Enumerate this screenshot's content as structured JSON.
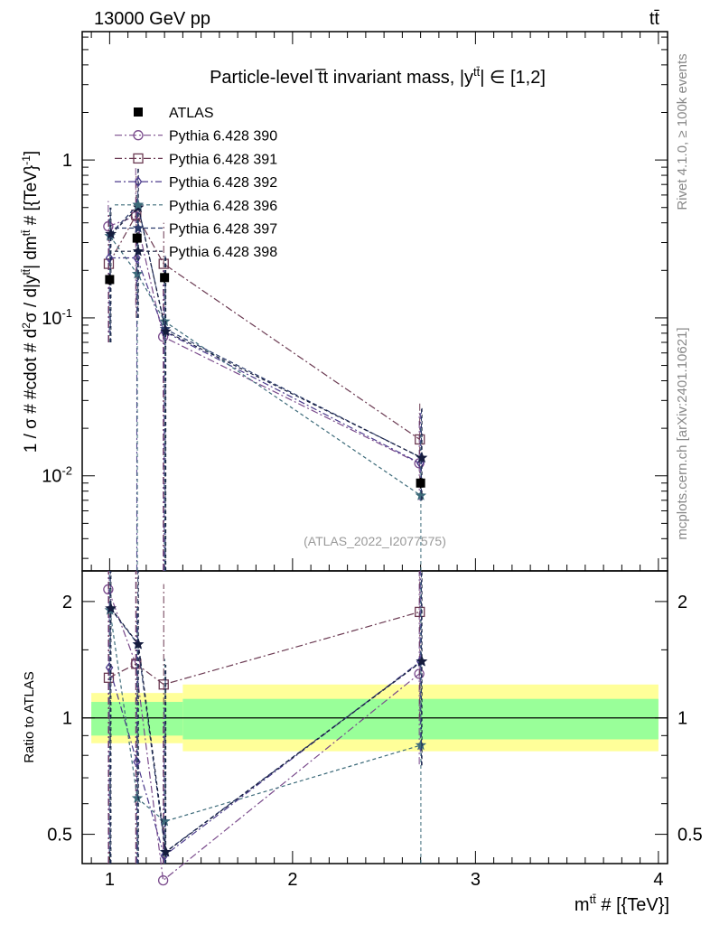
{
  "header": {
    "left": "13000 GeV pp",
    "right": "tt̄"
  },
  "side_labels": {
    "rivet": "Rivet 4.1.0, ≥ 100k events",
    "mcplots": "mcplots.cern.ch [arXiv:2401.10621]"
  },
  "chart_data": {
    "type": "line",
    "title": "Particle-level tt̄ invariant mass, |y^{tt̄}| ∈ [1,2]",
    "title_parts": {
      "main": "Particle-level t̅t invariant mass, |y",
      "sup": "tt̄",
      "tail": "| ∈ [1,2]"
    },
    "watermark": "(ATLAS_2022_I2077575)",
    "xlabel": "m^{tt̄} # [{TeV}]",
    "xlabel_parts": {
      "main": "m",
      "sup": "tt̄",
      "tail": " # [{TeV}]"
    },
    "ylabel": "1 / σ # #cdot # d²σ / d|y^{tt̄}| dm^{tt̄} # [{TeV}^{-1}]",
    "ylabel_parts": {
      "p1": "1 / σ # #cdot # d",
      "s1": "2",
      "p2": "σ / d|y",
      "s2": "tt̄",
      "p3": "| dm",
      "s3": "tt̄",
      "p4": " # [{TeV}",
      "s4": "-1",
      "p5": "]"
    },
    "ratio_ylabel": "Ratio to ATLAS",
    "xlim": [
      0.85,
      4.05
    ],
    "ylim": [
      0.0025,
      6.5
    ],
    "ratio_ylim": [
      0.42,
      2.4
    ],
    "x_ticks": [
      1,
      2,
      3,
      4
    ],
    "x_tick_labels": [
      "1",
      "2",
      "3",
      "4"
    ],
    "y_major_ticks": [
      0.01,
      0.1,
      1
    ],
    "y_tick_labels": [
      "10^-2",
      "10^-1",
      "1"
    ],
    "ratio_ticks": [
      0.5,
      1,
      2
    ],
    "ratio_tick_labels": [
      "0.5",
      "1",
      "2"
    ],
    "bins": [
      {
        "lo": 0.9,
        "hi": 1.08
      },
      {
        "lo": 1.08,
        "hi": 1.2
      },
      {
        "lo": 1.2,
        "hi": 1.4
      },
      {
        "lo": 1.4,
        "hi": 4.0
      }
    ],
    "x": [
      1.0,
      1.15,
      1.3,
      2.7
    ],
    "data": {
      "name": "ATLAS",
      "values": [
        0.175,
        0.32,
        0.18,
        0.009
      ],
      "band_inner": [
        [
          0.9,
          1.1
        ],
        [
          0.9,
          1.1
        ],
        [
          0.9,
          1.1
        ],
        [
          0.88,
          1.12
        ]
      ],
      "band_outer": [
        [
          0.86,
          1.16
        ],
        [
          0.86,
          1.16
        ],
        [
          0.86,
          1.16
        ],
        [
          0.82,
          1.22
        ]
      ]
    },
    "series": [
      {
        "name": "Pythia 6.428 390",
        "color": "#7a4b8c",
        "marker": "circle",
        "dash": "8,3,2,3",
        "values": [
          0.38,
          0.44,
          0.076,
          0.012
        ],
        "err_lo": [
          0.07,
          0.12,
          0.0,
          0.007
        ],
        "err_hi": [
          0.55,
          0.9,
          0.2,
          0.025
        ],
        "ratio": [
          2.15,
          1.38,
          0.38,
          1.3
        ]
      },
      {
        "name": "Pythia 6.428 391",
        "color": "#6b3a52",
        "marker": "square",
        "dash": "8,3,2,3",
        "values": [
          0.22,
          0.45,
          0.22,
          0.017
        ],
        "err_lo": [
          0.07,
          0.1,
          0.0,
          0.009
        ],
        "err_hi": [
          0.45,
          0.8,
          0.4,
          0.029
        ],
        "ratio": [
          1.27,
          1.38,
          1.22,
          1.88
        ]
      },
      {
        "name": "Pythia 6.428 392",
        "color": "#4b3a8c",
        "marker": "diamond",
        "dash": "7,3,2,3",
        "values": [
          0.24,
          0.24,
          0.082,
          0.012
        ],
        "err_lo": [
          0.08,
          0.0,
          0.0,
          0.007
        ],
        "err_hi": [
          0.45,
          0.6,
          0.2,
          0.025
        ],
        "ratio": [
          1.35,
          0.77,
          0.44,
          1.4
        ]
      },
      {
        "name": "Pythia 6.428 396",
        "color": "#3d6b7a",
        "marker": "star",
        "dash": "4,3",
        "values": [
          0.33,
          0.19,
          0.095,
          0.0075
        ],
        "err_lo": [
          0.07,
          0.0,
          0.0,
          0.0
        ],
        "err_hi": [
          0.5,
          0.6,
          0.25,
          0.02
        ],
        "ratio": [
          1.9,
          0.62,
          0.54,
          0.85
        ]
      },
      {
        "name": "Pythia 6.428 397",
        "color": "#2a3a6b",
        "marker": "star",
        "dash": "5,3",
        "values": [
          0.34,
          0.52,
          0.085,
          0.013
        ],
        "err_lo": [
          0.07,
          0.1,
          0.0,
          0.007
        ],
        "err_hi": [
          0.5,
          0.9,
          0.25,
          0.027
        ],
        "ratio": [
          1.92,
          1.55,
          0.45,
          1.4
        ]
      },
      {
        "name": "Pythia 6.428 398",
        "color": "#151c3d",
        "marker": "star",
        "dash": "4,3",
        "values": [
          0.34,
          0.5,
          0.082,
          0.013
        ],
        "err_lo": [
          0.07,
          0.1,
          0.0,
          0.007
        ],
        "err_hi": [
          0.5,
          0.9,
          0.25,
          0.027
        ],
        "ratio": [
          1.92,
          1.55,
          0.45,
          1.4
        ]
      }
    ]
  }
}
